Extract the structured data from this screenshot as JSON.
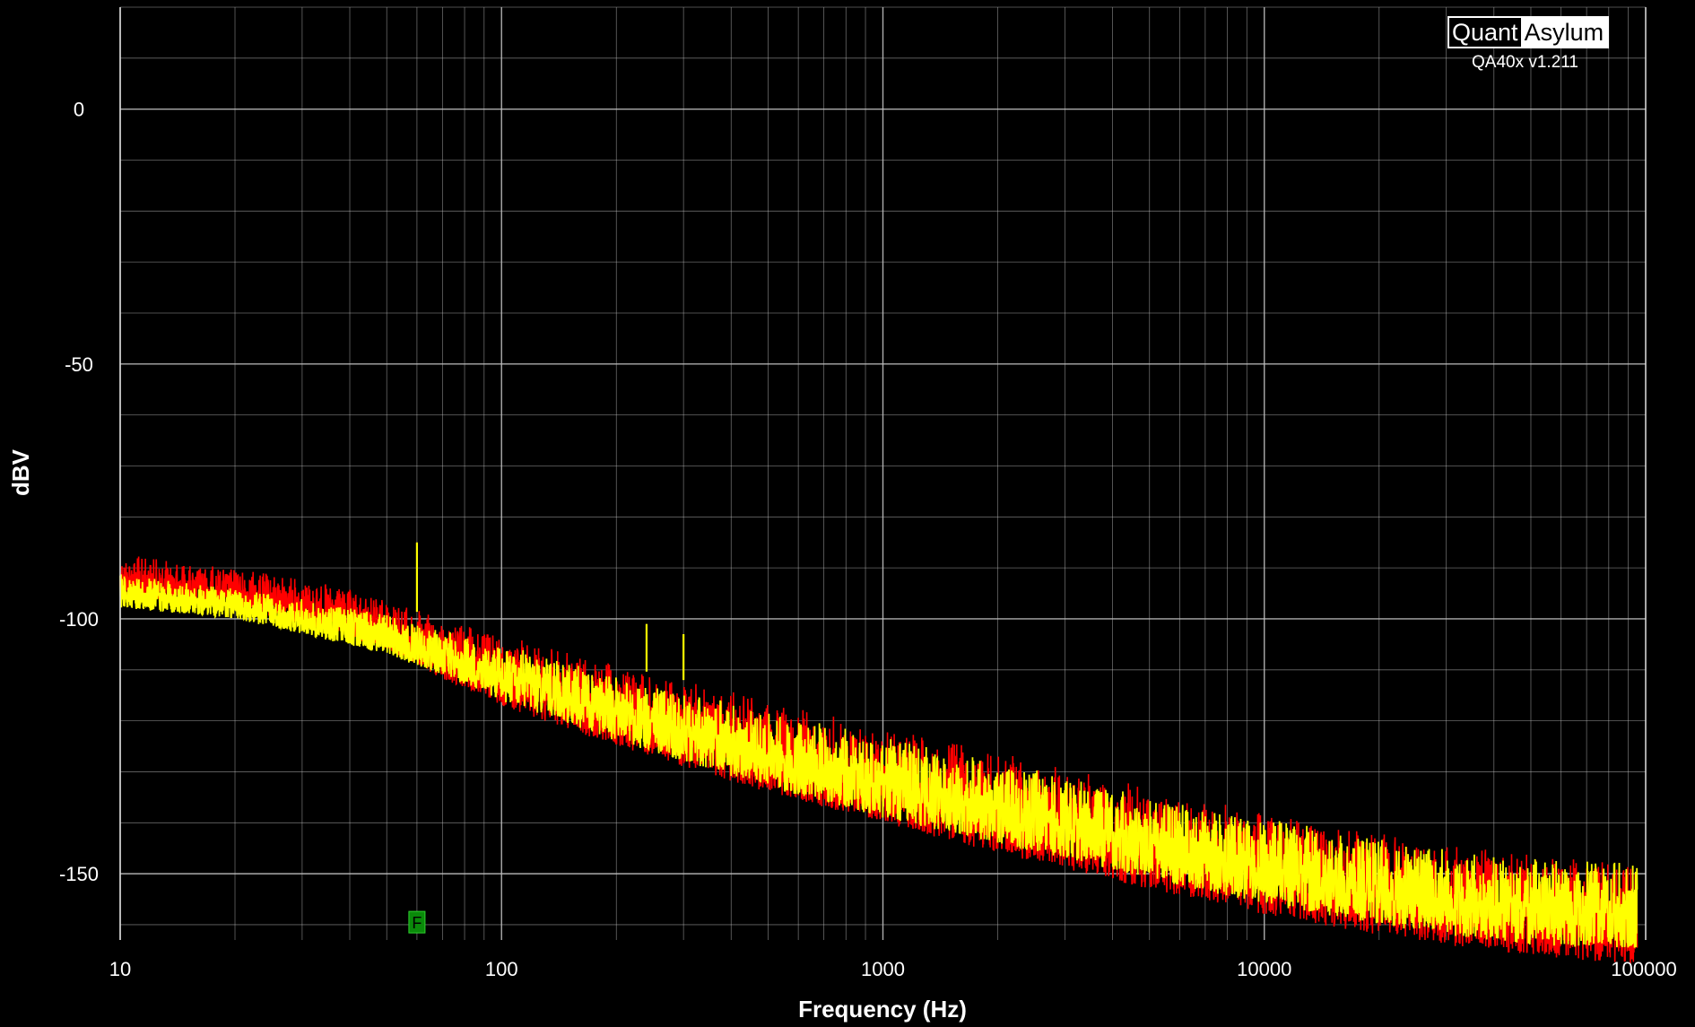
{
  "brand": {
    "left": "Quant",
    "right": "Asylum",
    "version": "QA40x v1.211"
  },
  "chart_data": {
    "type": "line",
    "title": "",
    "xlabel": "Frequency (Hz)",
    "ylabel": "dBV",
    "xscale": "log",
    "xlim": [
      10,
      100000
    ],
    "ylim": [
      -163,
      20
    ],
    "xticks": [
      10,
      100,
      1000,
      10000,
      100000
    ],
    "xtick_labels": [
      "10",
      "100",
      "1000",
      "10000",
      "100000"
    ],
    "yticks": [
      0,
      -50,
      -100,
      -150
    ],
    "ytick_labels": [
      "0",
      "-50",
      "-100",
      "-150"
    ],
    "grid": true,
    "legend": "none",
    "colors": {
      "background": "#000000",
      "grid": "#bfbfbf",
      "red": "#ff0000",
      "yellow": "#ffff00",
      "marker": "#0a8a0a"
    },
    "series": [
      {
        "color": "#ff0000",
        "x": [
          10,
          15,
          20,
          30,
          50,
          70,
          100,
          200,
          300,
          500,
          1000,
          2000,
          3000,
          5000,
          10000,
          20000,
          30000,
          50000,
          100000
        ],
        "y": [
          -87,
          -89,
          -90,
          -92,
          -96,
          -100,
          -103,
          -109,
          -112,
          -116,
          -121,
          -126,
          -129,
          -133,
          -138,
          -142,
          -144,
          -146,
          -148
        ],
        "band": [
          -9,
          -8,
          -8,
          -9,
          -10,
          -12,
          -14,
          -16,
          -17,
          -18,
          -19,
          -20,
          -20,
          -20,
          -20,
          -20,
          -20,
          -20,
          -20
        ]
      },
      {
        "color": "#ffff00",
        "x": [
          10,
          15,
          20,
          30,
          50,
          70,
          100,
          200,
          300,
          500,
          1000,
          2000,
          3000,
          5000,
          10000,
          20000,
          30000,
          50000,
          100000
        ],
        "y": [
          -91,
          -93,
          -94,
          -96,
          -99,
          -102,
          -105,
          -111,
          -114,
          -118,
          -123,
          -128,
          -131,
          -135,
          -139,
          -143,
          -145,
          -147,
          -148
        ],
        "band": [
          -7,
          -6,
          -6,
          -7,
          -8,
          -9,
          -11,
          -13,
          -14,
          -15,
          -16,
          -16,
          -16,
          -16,
          -17,
          -17,
          -17,
          -17,
          -17
        ]
      }
    ],
    "spikes": [
      {
        "x": 60,
        "y": -85
      },
      {
        "x": 240,
        "y": -101
      },
      {
        "x": 300,
        "y": -103
      }
    ],
    "marker": {
      "label": "F",
      "x": 60,
      "y": -159.5
    }
  }
}
